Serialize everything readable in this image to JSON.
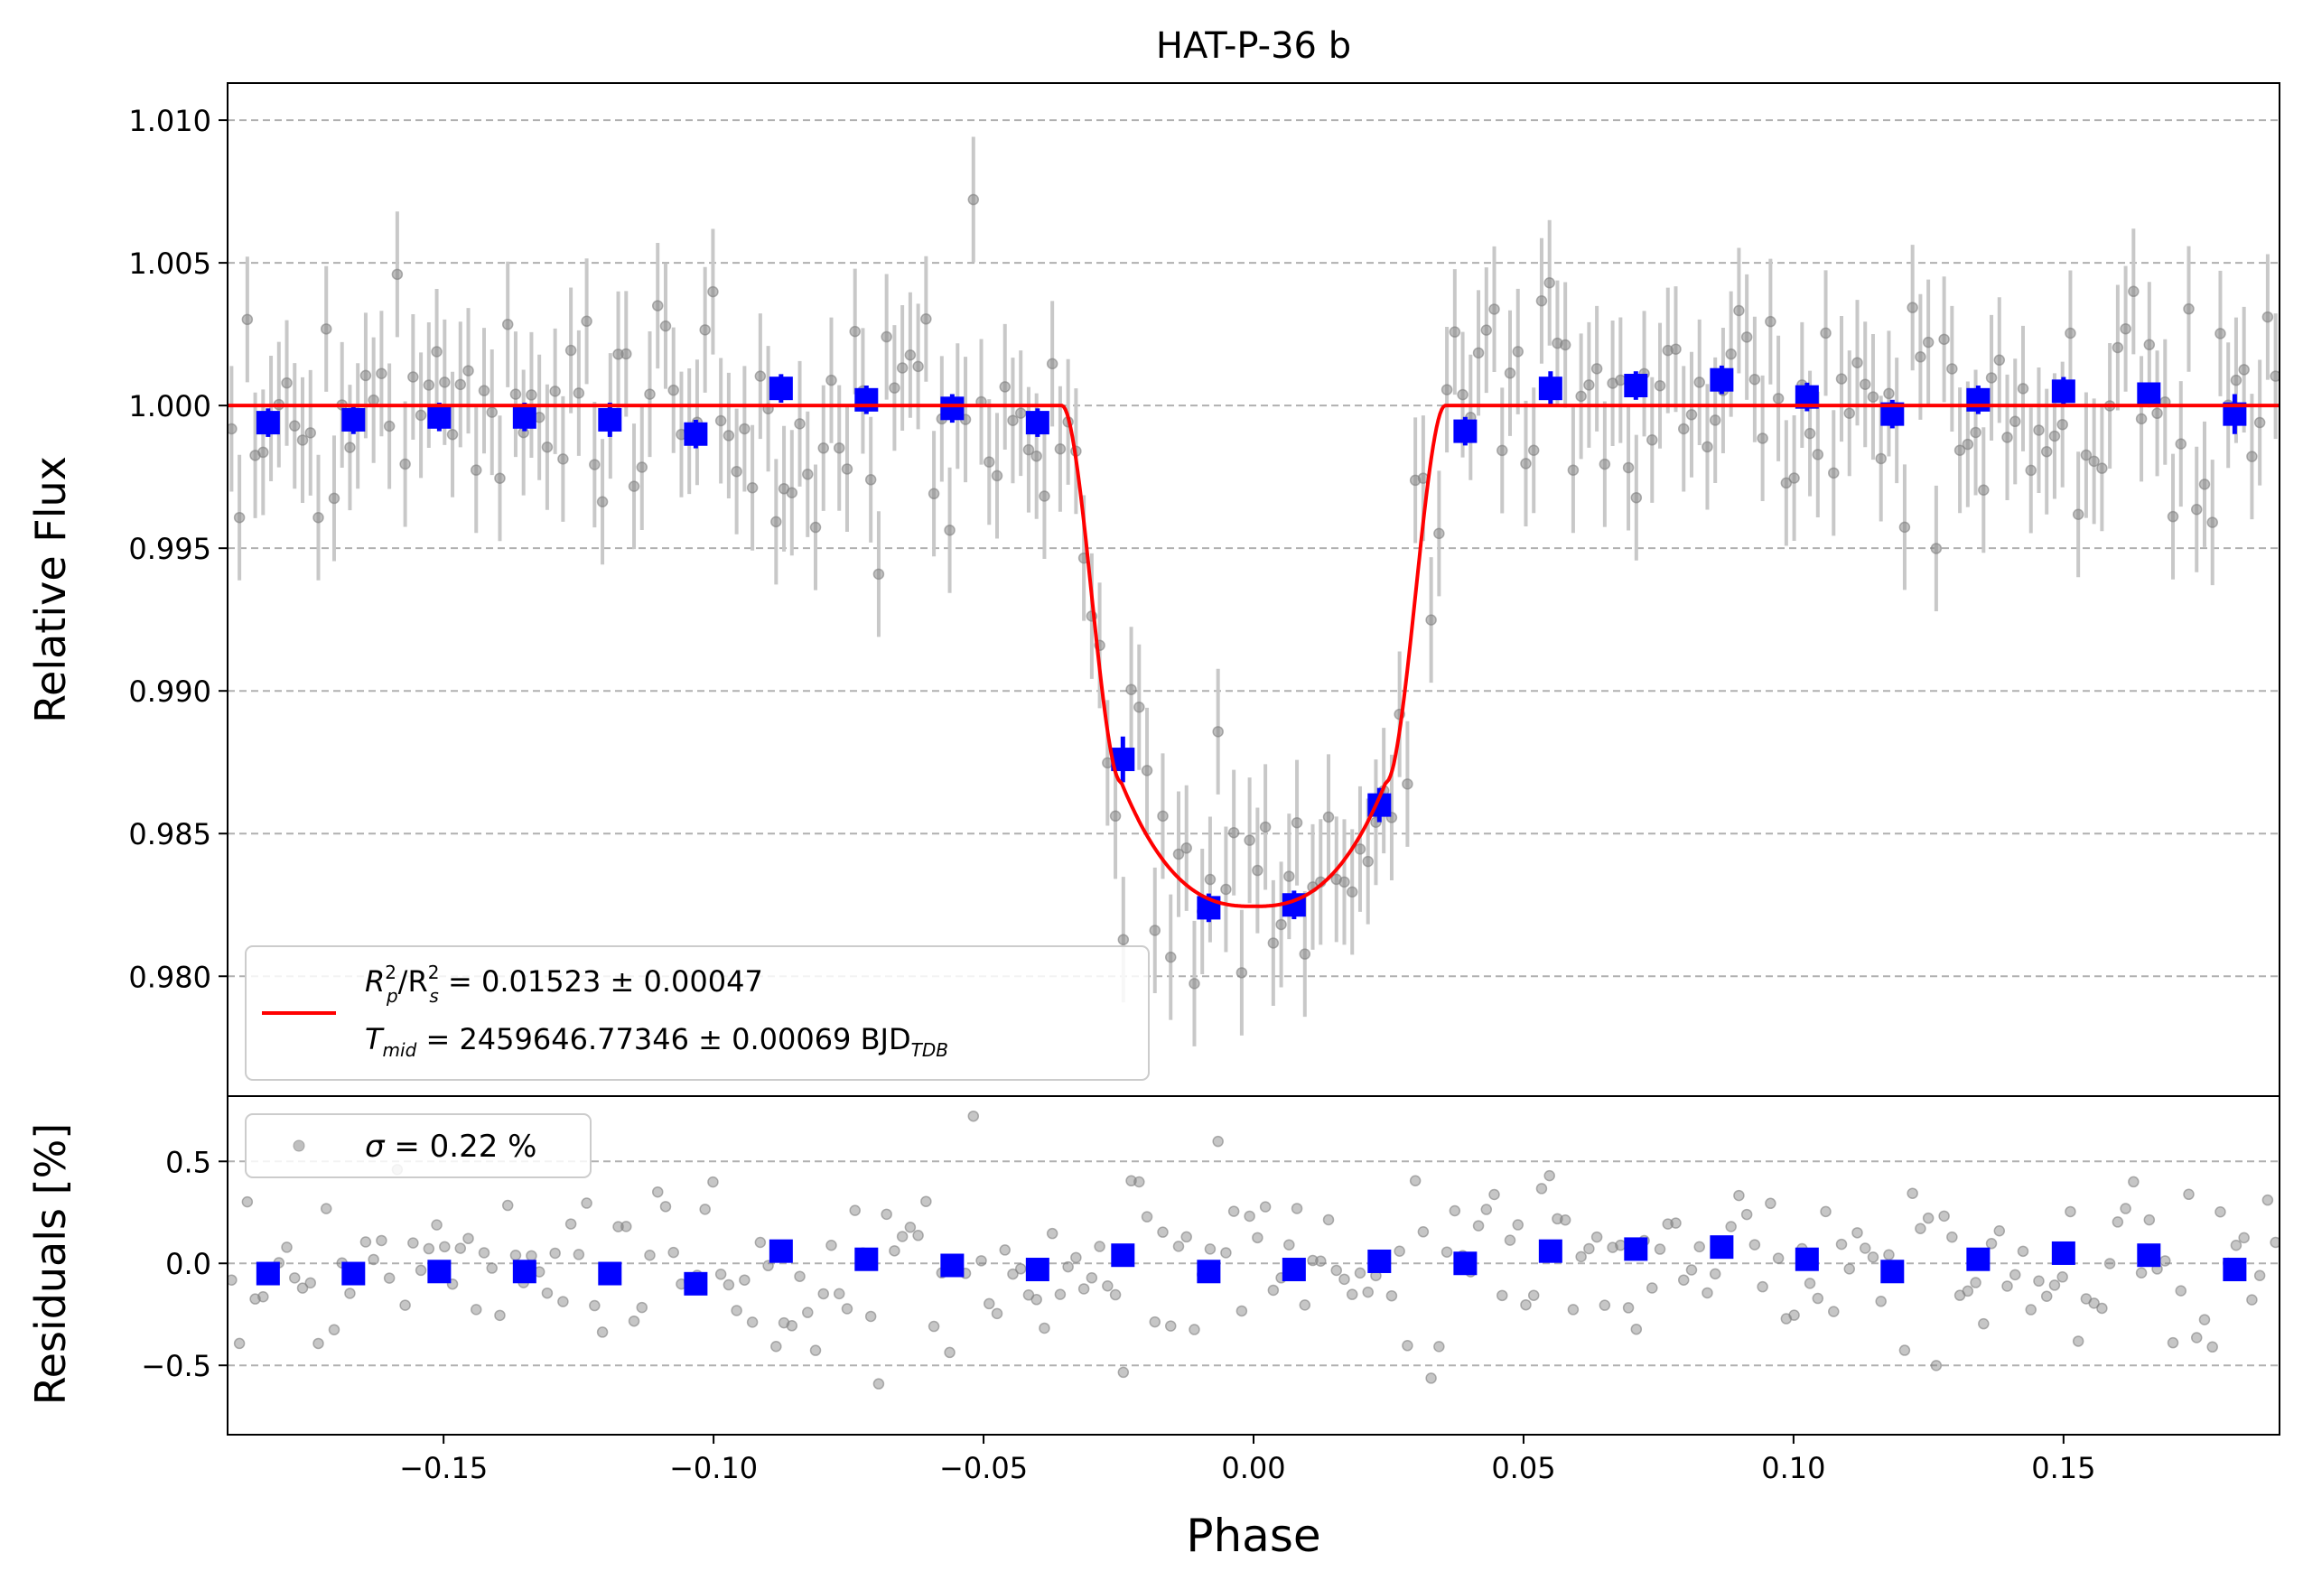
{
  "colors": {
    "data_points": "#808080",
    "error_bars": "#c8c8c8",
    "binned": "#0000ff",
    "model": "#ff0000",
    "grid": "#b0b0b0"
  },
  "chart_data": [
    {
      "panel": "light-curve",
      "type": "scatter",
      "title": "HAT-P-36 b",
      "xlabel": "",
      "ylabel": "Relative Flux",
      "xlim": [
        -0.19,
        0.19
      ],
      "ylim": [
        0.9758,
        1.0113
      ],
      "yticks": [
        0.98,
        0.985,
        0.99,
        0.995,
        1.0,
        1.005,
        1.01
      ],
      "ytick_labels": [
        "0.980",
        "0.985",
        "0.990",
        "0.995",
        "1.000",
        "1.005",
        "1.010"
      ],
      "grid": "horizontal dashed",
      "legend_placement": "lower-left",
      "legend": {
        "line1_a": "R",
        "line1_a_sup": "2",
        "line1_a_sub": "p",
        "line1_b": "/R",
        "line1_b_sup": "2",
        "line1_b_sub": "s",
        "line1_c": " = 0.01523 ± 0.00047",
        "line2_a": "T",
        "line2_a_sub": "mid",
        "line2_b": " = 2459646.77346 ± 0.00069 BJD",
        "line2_b_sub": "TDB"
      },
      "model": {
        "name": "transit fit",
        "depth": 0.01523,
        "t1": -0.0355,
        "t2": -0.0245,
        "t3": 0.0245,
        "t4": 0.0355,
        "bottom_flux": 0.98245,
        "contact_flux": 0.9868
      },
      "binned": {
        "x": [
          -0.1825,
          -0.1667,
          -0.1508,
          -0.135,
          -0.1192,
          -0.1033,
          -0.0875,
          -0.0717,
          -0.0558,
          -0.04,
          -0.0242,
          -0.0083,
          0.0075,
          0.0233,
          0.0392,
          0.055,
          0.0708,
          0.0867,
          0.1025,
          0.1183,
          0.1342,
          0.15,
          0.1658,
          0.1817
        ],
        "y": [
          0.9994,
          0.9995,
          0.9996,
          0.9996,
          0.9995,
          0.999,
          1.0006,
          1.0002,
          0.9999,
          0.9994,
          0.9876,
          0.9824,
          0.9825,
          0.986,
          0.9991,
          1.0006,
          1.0007,
          1.0009,
          1.0003,
          0.9997,
          1.0002,
          1.0005,
          1.0004,
          0.9997
        ],
        "yerr": [
          0.0005,
          0.0005,
          0.0005,
          0.0005,
          0.0006,
          0.0005,
          0.0005,
          0.0005,
          0.0005,
          0.0005,
          0.0008,
          0.0005,
          0.0005,
          0.0006,
          0.0005,
          0.0006,
          0.0005,
          0.0005,
          0.0005,
          0.0005,
          0.0005,
          0.0005,
          0.0004,
          0.0007
        ]
      },
      "raw_points": {
        "count": 260,
        "point_error": 0.0022,
        "scatter_sigma": 0.0022
      }
    },
    {
      "panel": "residuals",
      "type": "scatter",
      "xlabel": "Phase",
      "ylabel": "Residuals [%]",
      "xlim": [
        -0.19,
        0.19
      ],
      "ylim": [
        -0.84,
        0.82
      ],
      "xticks": [
        -0.15,
        -0.1,
        -0.05,
        0.0,
        0.05,
        0.1,
        0.15
      ],
      "xtick_labels": [
        "−0.15",
        "−0.10",
        "−0.05",
        "0.00",
        "0.05",
        "0.10",
        "0.15"
      ],
      "yticks": [
        -0.5,
        0.0,
        0.5
      ],
      "ytick_labels": [
        "−0.5",
        "0.0",
        "0.5"
      ],
      "grid": "horizontal dashed",
      "legend_placement": "upper-left",
      "legend": {
        "sigma_symbol": "σ",
        "sigma_rest": " = 0.22 %"
      },
      "binned": {
        "x": [
          -0.1825,
          -0.1667,
          -0.1508,
          -0.135,
          -0.1192,
          -0.1033,
          -0.0875,
          -0.0717,
          -0.0558,
          -0.04,
          -0.0242,
          -0.0083,
          0.0075,
          0.0233,
          0.0392,
          0.055,
          0.0708,
          0.0867,
          0.1025,
          0.1183,
          0.1342,
          0.15,
          0.1658,
          0.1817
        ],
        "y": [
          -0.05,
          -0.05,
          -0.04,
          -0.04,
          -0.05,
          -0.1,
          0.06,
          0.02,
          -0.01,
          -0.03,
          0.04,
          -0.04,
          -0.03,
          0.01,
          0.0,
          0.06,
          0.07,
          0.08,
          0.02,
          -0.04,
          0.02,
          0.05,
          0.04,
          -0.03
        ]
      }
    }
  ]
}
